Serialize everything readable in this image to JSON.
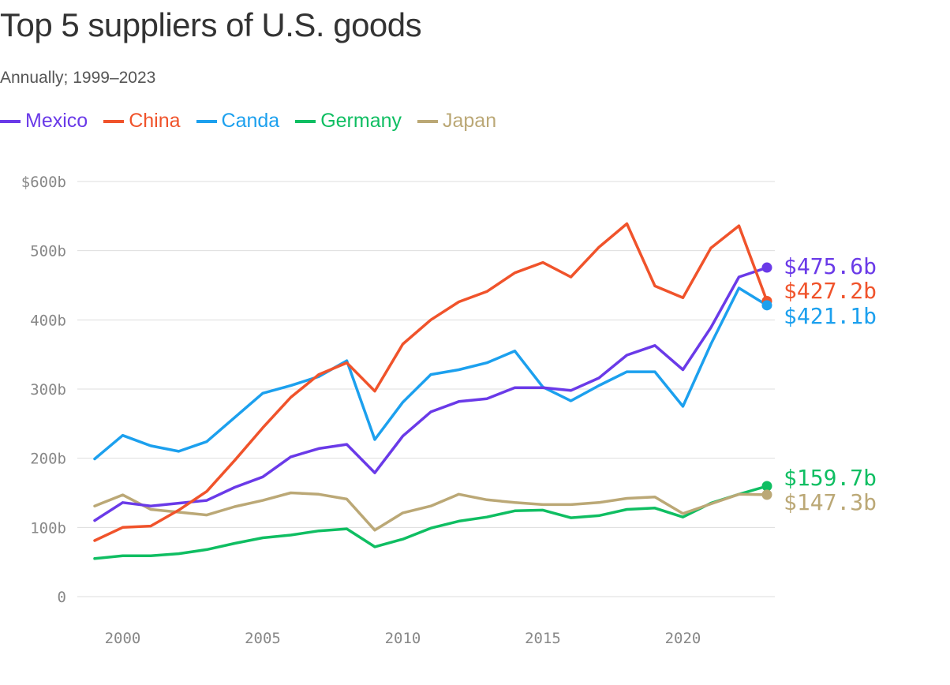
{
  "title": "Top 5 suppliers of U.S. goods",
  "subtitle": "Annually; 1999–2023",
  "chart_data": {
    "type": "line",
    "title": "Top 5 suppliers of U.S. goods",
    "subtitle": "Annually; 1999–2023",
    "x": [
      1999,
      2000,
      2001,
      2002,
      2003,
      2004,
      2005,
      2006,
      2007,
      2008,
      2009,
      2010,
      2011,
      2012,
      2013,
      2014,
      2015,
      2016,
      2017,
      2018,
      2019,
      2020,
      2021,
      2022,
      2023
    ],
    "xticks": [
      2000,
      2005,
      2010,
      2015,
      2020
    ],
    "xtick_labels": [
      "2000",
      "2005",
      "2010",
      "2015",
      "2020"
    ],
    "xlim": [
      1999,
      2023
    ],
    "ylim": [
      0,
      600
    ],
    "yticks": [
      0,
      100,
      200,
      300,
      400,
      500,
      600
    ],
    "ytick_labels": [
      "0",
      "100b",
      "200b",
      "300b",
      "400b",
      "500b",
      "$600b"
    ],
    "grid": true,
    "legend_position": "top-left",
    "series": [
      {
        "name": "Mexico",
        "color": "#6a3ae8",
        "end_label": "$475.6b",
        "values": [
          110,
          136,
          131,
          135,
          139,
          158,
          173,
          202,
          214,
          220,
          179,
          232,
          267,
          282,
          286,
          302,
          302,
          298,
          316,
          349,
          363,
          328,
          389,
          462,
          475.6
        ]
      },
      {
        "name": "China",
        "color": "#f0532b",
        "end_label": "$427.2b",
        "values": [
          81,
          100,
          102,
          125,
          152,
          197,
          244,
          288,
          321,
          338,
          297,
          365,
          400,
          426,
          441,
          468,
          483,
          462,
          505,
          539,
          449,
          432,
          504,
          536,
          427.2
        ]
      },
      {
        "name": "Canda",
        "color": "#1ca0ee",
        "end_label": "$421.1b",
        "values": [
          199,
          233,
          218,
          210,
          224,
          259,
          294,
          305,
          318,
          341,
          227,
          281,
          321,
          328,
          338,
          355,
          303,
          283,
          305,
          325,
          325,
          275,
          365,
          446,
          421.1
        ]
      },
      {
        "name": "Germany",
        "color": "#0fbe62",
        "end_label": "$159.7b",
        "values": [
          55,
          59,
          59,
          62,
          68,
          77,
          85,
          89,
          95,
          98,
          72,
          83,
          99,
          109,
          115,
          124,
          125,
          114,
          117,
          126,
          128,
          115,
          135,
          148,
          159.7
        ]
      },
      {
        "name": "Japan",
        "color": "#bba876",
        "end_label": "$147.3b",
        "values": [
          131,
          147,
          126,
          122,
          118,
          130,
          139,
          150,
          148,
          141,
          96,
          121,
          131,
          148,
          140,
          136,
          133,
          133,
          136,
          142,
          144,
          120,
          134,
          148,
          147.3
        ]
      }
    ]
  }
}
